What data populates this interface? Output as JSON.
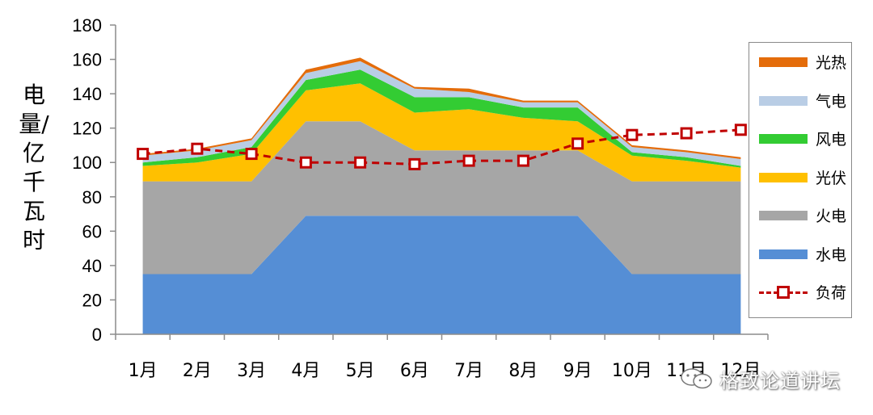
{
  "chart_data": {
    "type": "area",
    "ylabel": "电量/亿千瓦时",
    "ylim": [
      0,
      180
    ],
    "y_ticks": [
      0,
      20,
      40,
      60,
      80,
      100,
      120,
      140,
      160,
      180
    ],
    "categories": [
      "1月",
      "2月",
      "3月",
      "4月",
      "5月",
      "6月",
      "7月",
      "8月",
      "9月",
      "10月",
      "11月",
      "12月"
    ],
    "stacked_series": [
      {
        "name": "水电",
        "color": "#558ed5",
        "values": [
          35,
          35,
          35,
          69,
          69,
          69,
          69,
          69,
          69,
          35,
          35,
          35
        ]
      },
      {
        "name": "火电",
        "color": "#a6a6a6",
        "values": [
          54,
          54,
          54,
          55,
          55,
          38,
          38,
          38,
          38,
          54,
          54,
          54
        ]
      },
      {
        "name": "光伏",
        "color": "#ffc000",
        "values": [
          9,
          11,
          16,
          18,
          22,
          22,
          24,
          19,
          17,
          15,
          12,
          8
        ]
      },
      {
        "name": "风电",
        "color": "#33cc33",
        "values": [
          2,
          3,
          4,
          6,
          8,
          9,
          7,
          6,
          8,
          2,
          2,
          1
        ]
      },
      {
        "name": "气电",
        "color": "#b9cde5",
        "values": [
          4,
          4,
          4,
          4,
          5,
          5,
          3,
          3,
          3,
          3,
          3,
          4
        ]
      },
      {
        "name": "光热",
        "color": "#e46c0a",
        "values": [
          1,
          1,
          1,
          2,
          2,
          1,
          2,
          1,
          1,
          1,
          1,
          1
        ]
      }
    ],
    "line_series": {
      "name": "负荷",
      "color": "#c00000",
      "values": [
        105,
        108,
        105,
        100,
        100,
        99,
        101,
        101,
        111,
        116,
        117,
        119
      ]
    },
    "legend_order": [
      "光热",
      "气电",
      "风电",
      "光伏",
      "火电",
      "水电",
      "负荷"
    ],
    "legend_position": "right",
    "grid": false
  },
  "watermark": {
    "text": "格致论道讲坛"
  }
}
